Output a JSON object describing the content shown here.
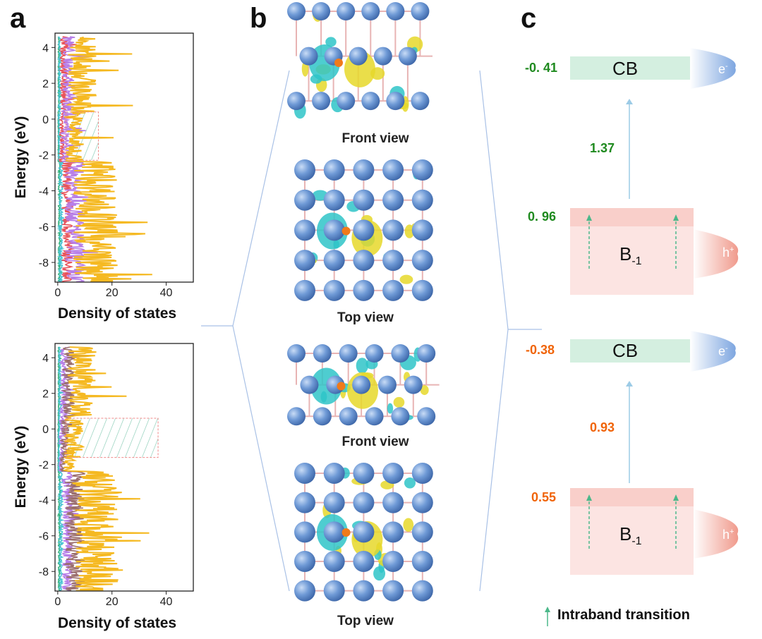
{
  "panel_a": {
    "letter": "a",
    "plots": [
      {
        "ylabel": "Energy (eV)",
        "xlabel": "Density of states",
        "y_ticks": [
          "4",
          "2",
          "0",
          "-2",
          "-4",
          "-6",
          "-8"
        ],
        "x_ticks": [
          "0",
          "20",
          "40"
        ],
        "ylim": [
          -9.1,
          4.8
        ],
        "xlim": [
          -1,
          50
        ],
        "highlight_box": {
          "energy_range": [
            -2.3,
            0.4
          ],
          "dos_range": [
            3,
            15
          ]
        },
        "series_colors": [
          "#f5b921",
          "#b77ee8",
          "#e8535a",
          "#4bc4d4",
          "#2fb07a"
        ]
      },
      {
        "ylabel": "Energy (eV)",
        "xlabel": "Density of states",
        "y_ticks": [
          "4",
          "2",
          "0",
          "-2",
          "-4",
          "-6",
          "-8"
        ],
        "x_ticks": [
          "0",
          "20",
          "40"
        ],
        "ylim": [
          -9.1,
          4.8
        ],
        "xlim": [
          -1,
          50
        ],
        "highlight_box": {
          "energy_range": [
            -1.6,
            0.6
          ],
          "dos_range": [
            3,
            37
          ]
        },
        "series_colors": [
          "#f5b921",
          "#9b6e6e",
          "#b77ee8",
          "#4bc4d4",
          "#2fb07a"
        ]
      }
    ]
  },
  "panel_b": {
    "letter": "b",
    "views": [
      "Front view",
      "Top view",
      "Front view",
      "Top view"
    ]
  },
  "panel_c": {
    "letter": "c",
    "diagrams": [
      {
        "cb_label": "CB",
        "cb_value": "-0. 41",
        "gap": "1.37",
        "vb_value": "0. 96",
        "vb_label": "B",
        "vb_sub": "-1",
        "electron": "e",
        "electron_sup": "-",
        "hole": "h",
        "hole_sup": "+",
        "value_color": "#1f8a1f"
      },
      {
        "cb_label": "CB",
        "cb_value": "-0.38",
        "gap": "0.93",
        "vb_value": "0.55",
        "vb_label": "B",
        "vb_sub": "-1",
        "electron": "e",
        "electron_sup": "-",
        "hole": "h",
        "hole_sup": "+",
        "value_color": "#f0640a"
      }
    ],
    "legend": "Intraband transition"
  },
  "colors": {
    "cb": "#d4efe0",
    "vb": "#fce4e2",
    "vb_top": "#f9cfca",
    "arrow": "#9ccbe6",
    "intraband_arrow": "#4cb88a",
    "atom": "#6f9ad6",
    "iso_yellow": "#e6d82a",
    "iso_cyan": "#2fc4c8"
  }
}
